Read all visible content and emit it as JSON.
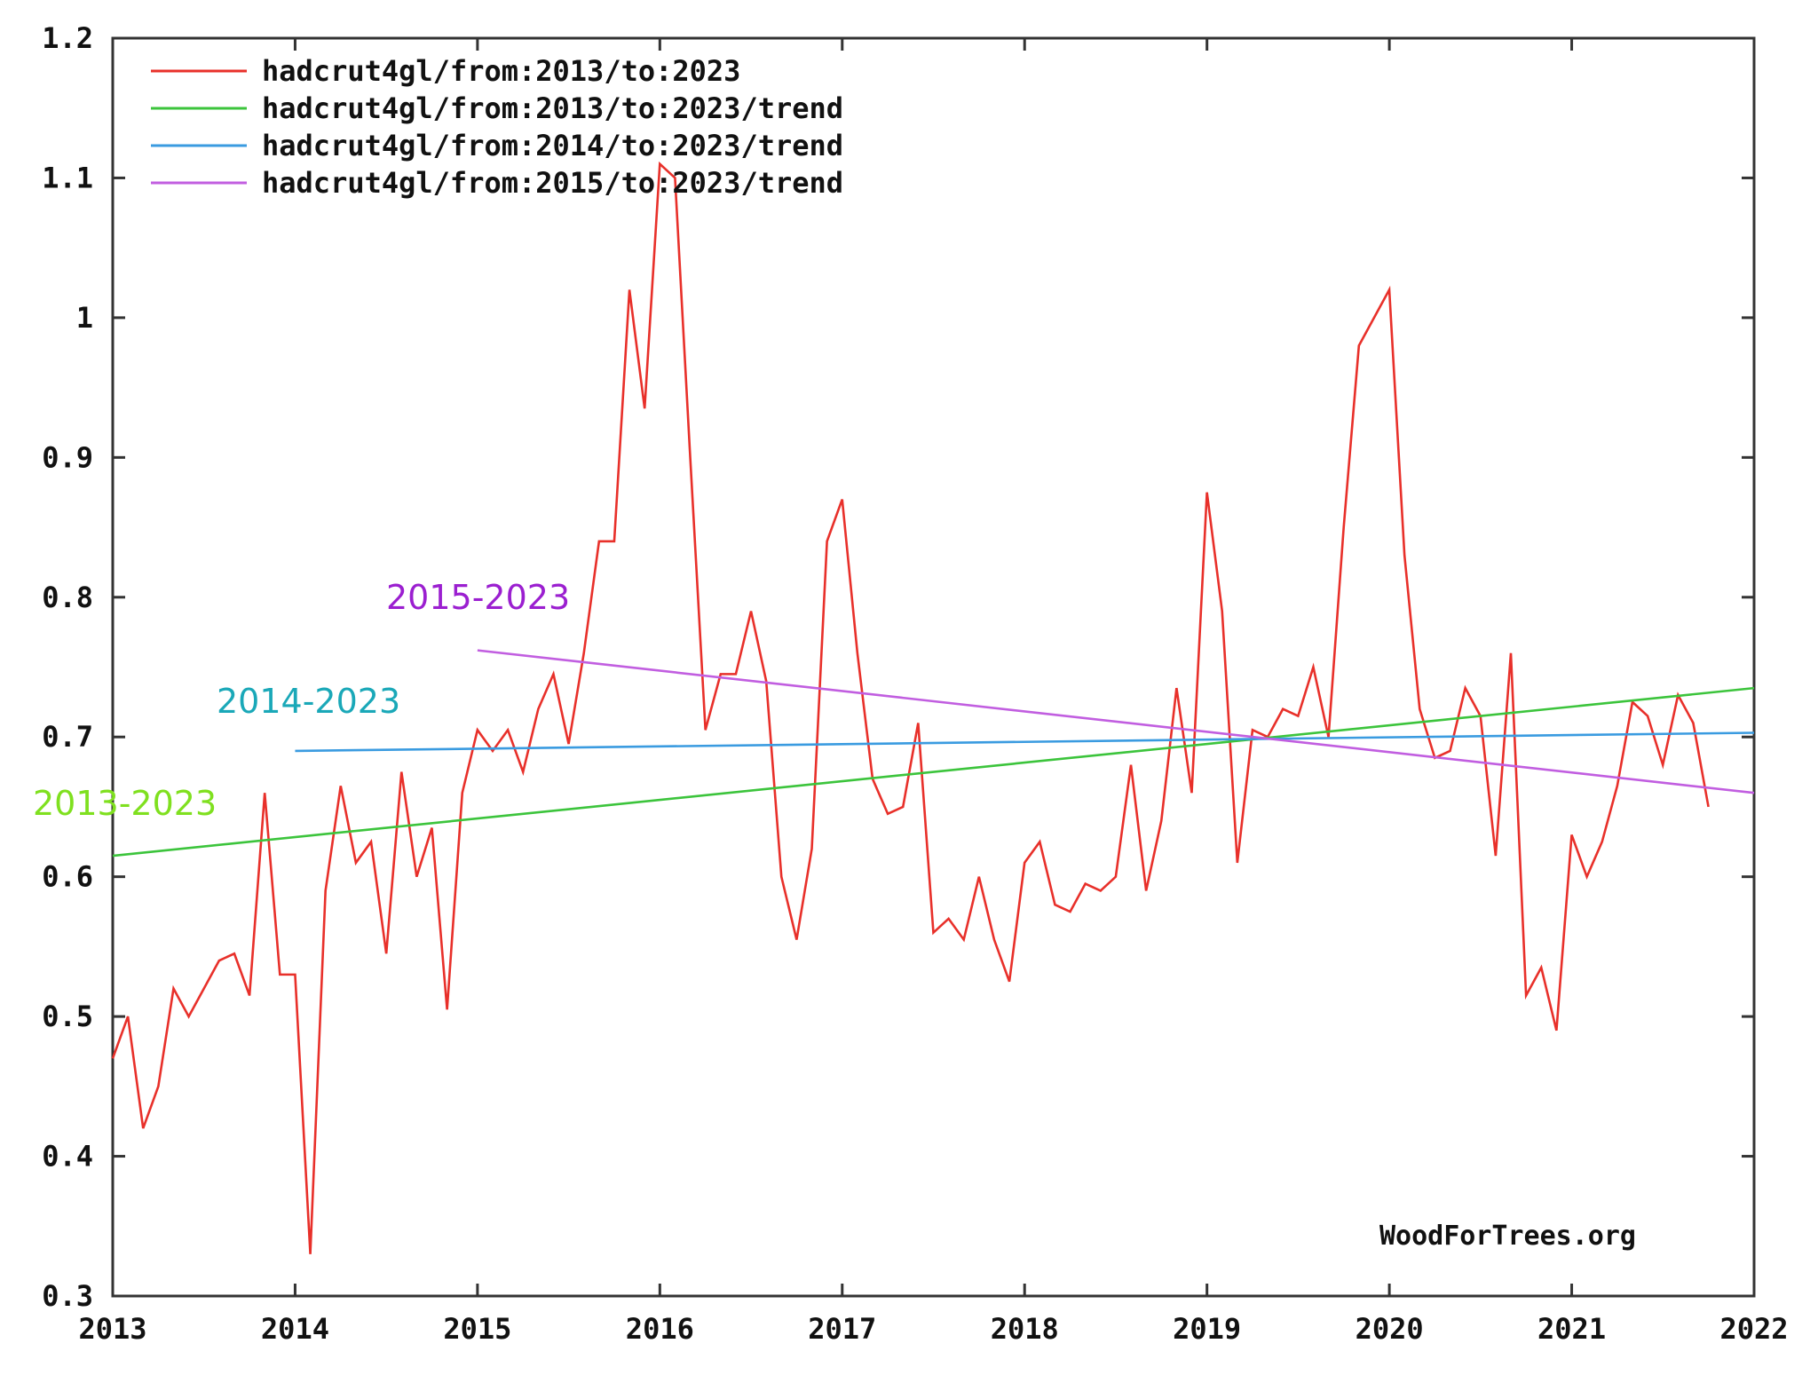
{
  "chart_data": {
    "type": "line",
    "title": "",
    "xlabel": "",
    "ylabel": "",
    "xlim": [
      2013,
      2022
    ],
    "ylim": [
      0.3,
      1.2
    ],
    "grid": false,
    "legend_position": "top-left",
    "x_ticks": [
      "2013",
      "2014",
      "2015",
      "2016",
      "2017",
      "2018",
      "2019",
      "2020",
      "2021",
      "2022"
    ],
    "y_ticks": [
      "0.3",
      "0.4",
      "0.5",
      "0.6",
      "0.7",
      "0.8",
      "0.9",
      "1",
      "1.1",
      "1.2"
    ],
    "series": [
      {
        "name": "hadcrut4gl/from:2013/to:2023",
        "color": "#e8302a",
        "start": 2013.0,
        "step": 0.08333,
        "values": [
          0.47,
          0.5,
          0.42,
          0.45,
          0.52,
          0.5,
          0.52,
          0.54,
          0.545,
          0.515,
          0.66,
          0.53,
          0.53,
          0.33,
          0.59,
          0.665,
          0.61,
          0.625,
          0.545,
          0.675,
          0.6,
          0.635,
          0.505,
          0.66,
          0.705,
          0.69,
          0.705,
          0.675,
          0.72,
          0.745,
          0.695,
          0.76,
          0.84,
          0.84,
          1.02,
          0.935,
          1.11,
          1.1,
          0.9,
          0.705,
          0.745,
          0.745,
          0.79,
          0.74,
          0.6,
          0.555,
          0.62,
          0.84,
          0.87,
          0.76,
          0.67,
          0.645,
          0.65,
          0.71,
          0.56,
          0.57,
          0.555,
          0.6,
          0.555,
          0.525,
          0.61,
          0.625,
          0.58,
          0.575,
          0.595,
          0.59,
          0.6,
          0.68,
          0.59,
          0.64,
          0.735,
          0.66,
          0.875,
          0.79,
          0.61,
          0.705,
          0.7,
          0.72,
          0.715,
          0.75,
          0.7,
          0.85,
          0.98,
          1.0,
          1.02,
          0.83,
          0.72,
          0.685,
          0.69,
          0.735,
          0.715,
          0.615,
          0.76,
          0.515,
          0.535,
          0.49,
          0.63,
          0.6,
          0.625,
          0.665,
          0.725,
          0.715,
          0.68,
          0.73,
          0.71,
          0.65
        ]
      },
      {
        "name": "hadcrut4gl/from:2013/to:2023/trend",
        "color": "#3cc43c",
        "x": [
          2013,
          2022
        ],
        "values": [
          0.615,
          0.735
        ]
      },
      {
        "name": "hadcrut4gl/from:2014/to:2023/trend",
        "color": "#3a9be0",
        "x": [
          2014,
          2022
        ],
        "values": [
          0.69,
          0.703
        ]
      },
      {
        "name": "hadcrut4gl/from:2015/to:2023/trend",
        "color": "#c15ee0",
        "x": [
          2015,
          2022
        ],
        "values": [
          0.762,
          0.66
        ]
      }
    ],
    "annotations": [
      {
        "text": "2015-2023",
        "color": "#9b1fd0"
      },
      {
        "text": "2014-2023",
        "color": "#1aa8b8"
      },
      {
        "text": "2013-2023",
        "color": "#7fe01f"
      }
    ],
    "watermark": "WoodForTrees.org"
  }
}
